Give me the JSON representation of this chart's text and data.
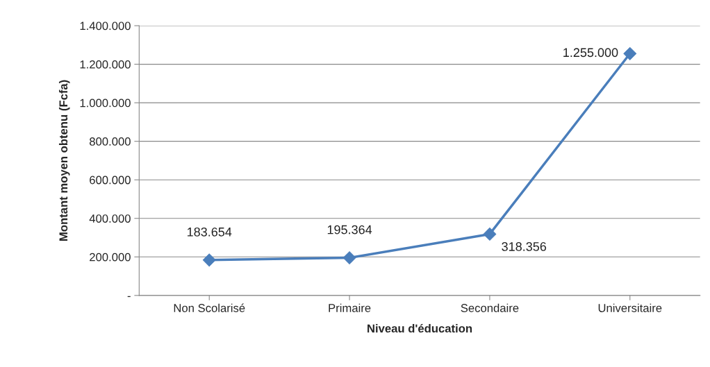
{
  "chart_data": {
    "type": "line",
    "xlabel": "Niveau d'éducation",
    "ylabel": "Montant moyen obtenu (Fcfa)",
    "categories": [
      "Non Scolarisé",
      "Primaire",
      "Secondaire",
      "Universitaire"
    ],
    "series": [
      {
        "color": "#4a7ebb",
        "values": [
          183654,
          195364,
          318356,
          1255000
        ]
      }
    ],
    "value_labels": [
      "183.654",
      "195.364",
      "318.356",
      "1.255.000"
    ],
    "ylim": [
      0,
      1400000
    ],
    "yticks": [
      {
        "value": 0,
        "label": "-"
      },
      {
        "value": 200000,
        "label": "200.000"
      },
      {
        "value": 400000,
        "label": "400.000"
      },
      {
        "value": 600000,
        "label": "600.000"
      },
      {
        "value": 800000,
        "label": "800.000"
      },
      {
        "value": 1000000,
        "label": "1.000.000"
      },
      {
        "value": 1200000,
        "label": "1.200.000"
      },
      {
        "value": 1400000,
        "label": "1.400.000"
      }
    ],
    "grid": "y",
    "marker": "diamond",
    "line_style": "solid",
    "legend": false
  }
}
